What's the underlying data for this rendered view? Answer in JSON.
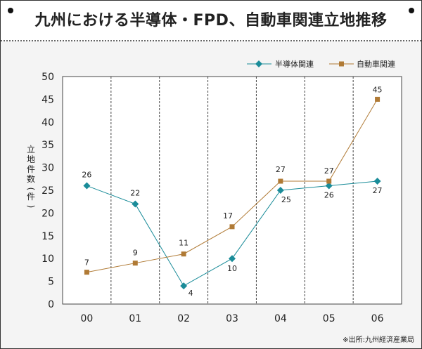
{
  "title": "九州における半導体・FPD、自動車関連立地推移",
  "source": "※出所:九州経済産業局",
  "colors": {
    "semiconductor": "#1a8c99",
    "automotive": "#b07a35",
    "grid": "#444444"
  },
  "chart_data": {
    "type": "line",
    "title": "九州における半導体・FPD、自動車関連立地推移",
    "xlabel": "",
    "ylabel": "立地件数(件)",
    "categories": [
      "00",
      "01",
      "02",
      "03",
      "04",
      "05",
      "06"
    ],
    "ylim": [
      0,
      50
    ],
    "yticks": [
      0,
      5,
      10,
      15,
      20,
      25,
      30,
      35,
      40,
      45,
      50
    ],
    "grid": "vertical",
    "legend": "top-right",
    "series": [
      {
        "name": "半導体関連",
        "marker": "diamond",
        "values": [
          26,
          22,
          4,
          10,
          25,
          26,
          27
        ]
      },
      {
        "name": "自動車関連",
        "marker": "square",
        "values": [
          7,
          9,
          11,
          17,
          27,
          27,
          45
        ]
      }
    ]
  }
}
